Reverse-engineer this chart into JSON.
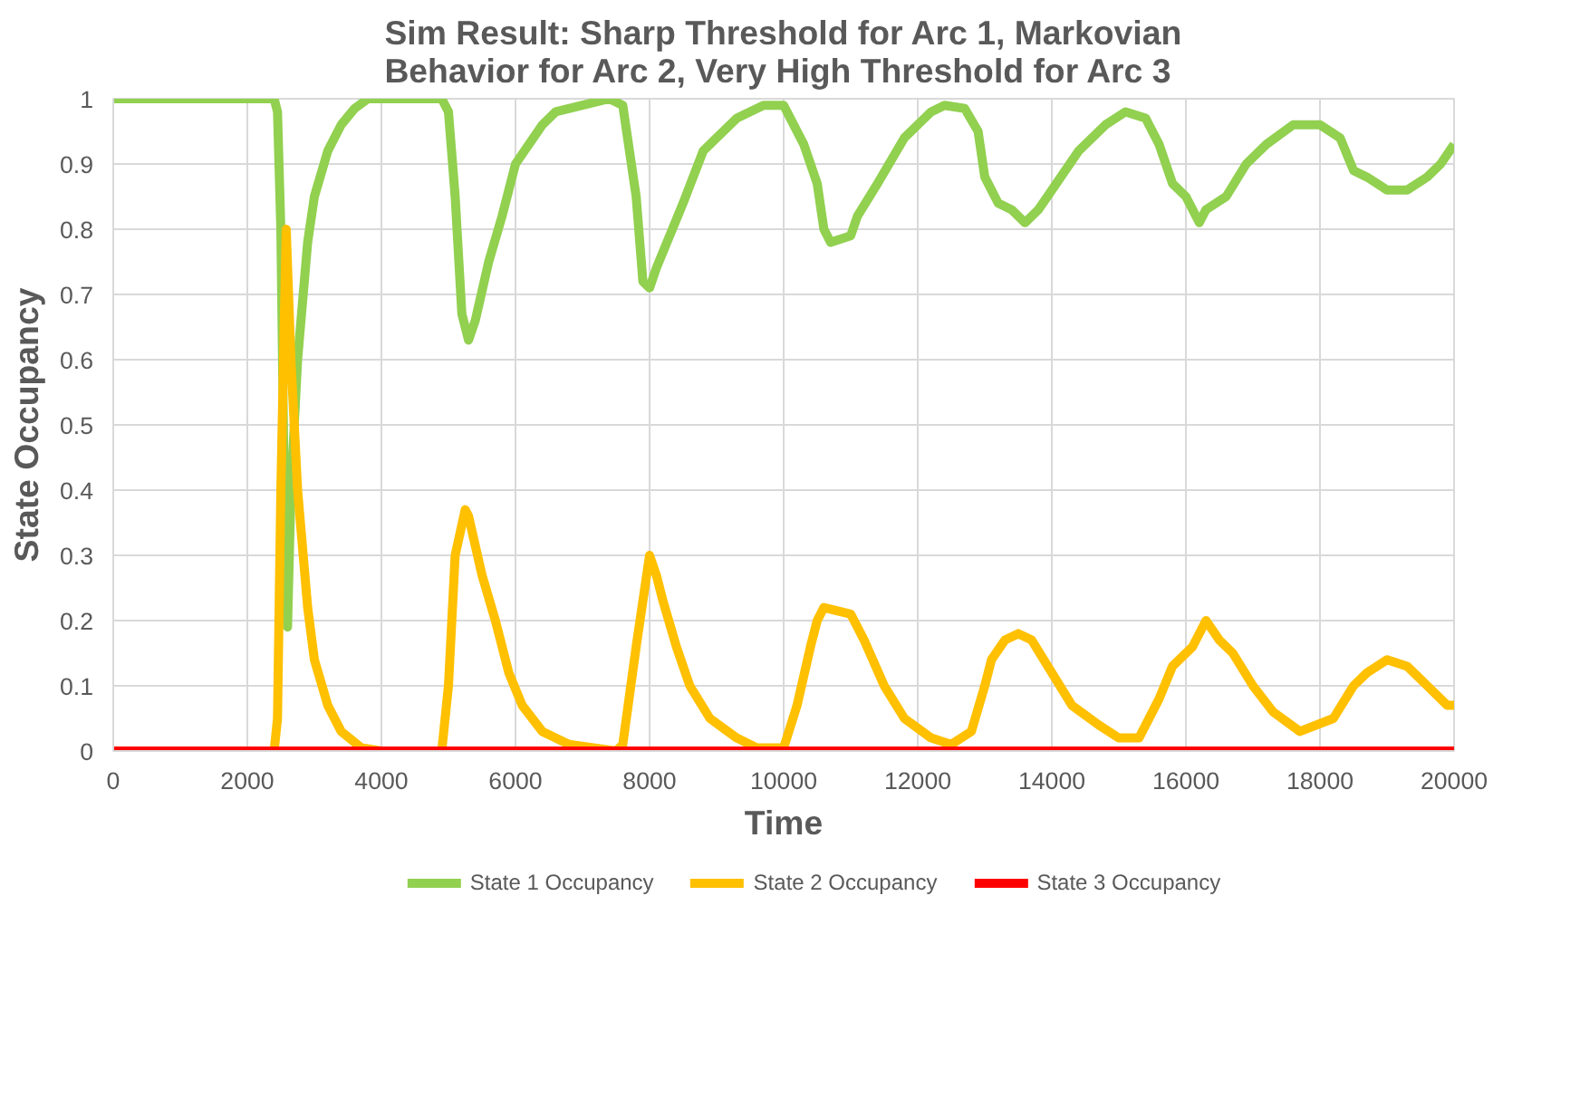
{
  "chart_data": {
    "type": "line",
    "title": "Sim Result: Sharp Threshold for Arc 1, Markovian Behavior for Arc 2, Very High Threshold for Arc 3",
    "xlabel": "Time",
    "ylabel": "State Occupancy",
    "xlim": [
      0,
      20000
    ],
    "ylim": [
      0,
      1
    ],
    "xticks": [
      0,
      2000,
      4000,
      6000,
      8000,
      10000,
      12000,
      14000,
      16000,
      18000,
      20000
    ],
    "yticks": [
      0,
      0.1,
      0.2,
      0.3,
      0.4,
      0.5,
      0.6,
      0.7,
      0.8,
      0.9,
      1
    ],
    "grid": true,
    "legend": "bottom",
    "marker": "none",
    "line_style": "solid",
    "series": [
      {
        "name": "State 1 Occupancy",
        "color": "#92d050",
        "x": [
          0,
          2400,
          2450,
          2500,
          2550,
          2600,
          2650,
          2750,
          2900,
          3000,
          3200,
          3400,
          3600,
          3800,
          4000,
          4900,
          5000,
          5100,
          5200,
          5300,
          5400,
          5600,
          5800,
          6000,
          6200,
          6400,
          6600,
          7000,
          7400,
          7600,
          7800,
          7900,
          8000,
          8100,
          8300,
          8500,
          8800,
          9000,
          9300,
          9700,
          10000,
          10100,
          10300,
          10500,
          10600,
          10700,
          11000,
          11100,
          11400,
          11800,
          12200,
          12400,
          12700,
          12900,
          13000,
          13200,
          13400,
          13600,
          13800,
          14000,
          14400,
          14800,
          15100,
          15400,
          15600,
          15800,
          16000,
          16200,
          16300,
          16600,
          16900,
          17200,
          17600,
          18000,
          18300,
          18500,
          18700,
          19000,
          19300,
          19600,
          19800,
          20000
        ],
        "values": [
          1,
          1,
          0.98,
          0.8,
          0.4,
          0.19,
          0.4,
          0.6,
          0.78,
          0.85,
          0.92,
          0.96,
          0.985,
          1,
          1,
          1,
          0.98,
          0.85,
          0.67,
          0.63,
          0.66,
          0.75,
          0.82,
          0.9,
          0.93,
          0.96,
          0.98,
          0.99,
          1,
          0.99,
          0.85,
          0.72,
          0.71,
          0.74,
          0.79,
          0.84,
          0.92,
          0.94,
          0.97,
          0.99,
          0.99,
          0.97,
          0.93,
          0.87,
          0.8,
          0.78,
          0.79,
          0.82,
          0.87,
          0.94,
          0.98,
          0.99,
          0.985,
          0.95,
          0.88,
          0.84,
          0.83,
          0.81,
          0.83,
          0.86,
          0.92,
          0.96,
          0.98,
          0.97,
          0.93,
          0.87,
          0.85,
          0.81,
          0.83,
          0.85,
          0.9,
          0.93,
          0.96,
          0.96,
          0.94,
          0.89,
          0.88,
          0.86,
          0.86,
          0.88,
          0.9,
          0.93
        ]
      },
      {
        "name": "State 2 Occupancy",
        "color": "#ffc000",
        "x": [
          0,
          2400,
          2450,
          2500,
          2580,
          2650,
          2750,
          2900,
          3000,
          3200,
          3400,
          3700,
          4000,
          4900,
          5000,
          5100,
          5250,
          5300,
          5500,
          5700,
          5900,
          6100,
          6400,
          6800,
          7500,
          7600,
          7800,
          8000,
          8100,
          8200,
          8400,
          8600,
          8900,
          9300,
          9600,
          10000,
          10200,
          10400,
          10500,
          10600,
          11000,
          11200,
          11500,
          11800,
          12200,
          12500,
          12800,
          13000,
          13100,
          13300,
          13500,
          13700,
          14000,
          14300,
          14700,
          15000,
          15300,
          15600,
          15800,
          16100,
          16300,
          16500,
          16700,
          17000,
          17300,
          17700,
          18200,
          18500,
          18700,
          19000,
          19300,
          19600,
          19900,
          20000
        ],
        "values": [
          0,
          0,
          0.05,
          0.4,
          0.8,
          0.6,
          0.4,
          0.22,
          0.14,
          0.07,
          0.03,
          0.005,
          0,
          0,
          0.1,
          0.3,
          0.37,
          0.36,
          0.27,
          0.2,
          0.12,
          0.07,
          0.03,
          0.01,
          0,
          0.01,
          0.16,
          0.3,
          0.27,
          0.23,
          0.16,
          0.1,
          0.05,
          0.02,
          0.005,
          0.005,
          0.07,
          0.16,
          0.2,
          0.22,
          0.21,
          0.17,
          0.1,
          0.05,
          0.02,
          0.01,
          0.03,
          0.1,
          0.14,
          0.17,
          0.18,
          0.17,
          0.12,
          0.07,
          0.04,
          0.02,
          0.02,
          0.08,
          0.13,
          0.16,
          0.2,
          0.17,
          0.15,
          0.1,
          0.06,
          0.03,
          0.05,
          0.1,
          0.12,
          0.14,
          0.13,
          0.1,
          0.07,
          0.07
        ]
      },
      {
        "name": "State 3 Occupancy",
        "color": "#ff0000",
        "x": [
          0,
          20000
        ],
        "values": [
          0,
          0
        ]
      }
    ]
  }
}
